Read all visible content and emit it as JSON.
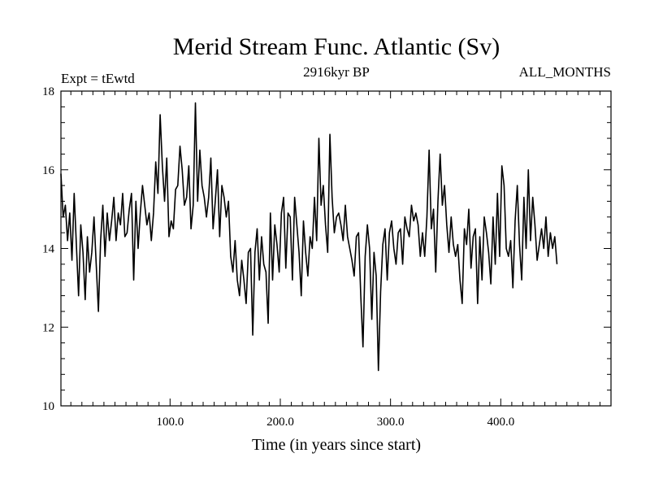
{
  "chart_data": {
    "type": "line",
    "title": "Merid Stream Func. Atlantic (Sv)",
    "subtitle_left": "Expt = tEwtd",
    "subtitle_center": "2916kyr BP",
    "subtitle_right": "ALL_MONTHS",
    "xlabel": "Time (in years since start)",
    "ylabel": "",
    "xlim": [
      1,
      500
    ],
    "ylim": [
      10,
      18
    ],
    "x_ticks_major": [
      100,
      200,
      300,
      400
    ],
    "x_tick_labels": [
      "100.0",
      "200.0",
      "300.0",
      "400.0"
    ],
    "y_ticks_major": [
      10,
      12,
      14,
      16,
      18
    ],
    "y_tick_labels": [
      "10",
      "12",
      "14",
      "16",
      "18"
    ],
    "grid": false,
    "series": [
      {
        "name": "Merid Stream Func. Atlantic",
        "x_start": 1,
        "x_step": 2,
        "values": [
          15.9,
          14.8,
          15.1,
          14.2,
          14.9,
          13.7,
          15.4,
          14.1,
          12.8,
          14.6,
          13.9,
          12.7,
          14.3,
          13.4,
          13.9,
          14.8,
          13.6,
          12.4,
          14.2,
          15.1,
          13.8,
          14.9,
          14.2,
          14.7,
          15.3,
          14.2,
          14.9,
          14.6,
          15.4,
          14.3,
          14.4,
          15.0,
          15.4,
          13.2,
          15.2,
          14.0,
          14.9,
          15.6,
          15.1,
          14.6,
          14.9,
          14.2,
          14.9,
          16.2,
          15.4,
          17.4,
          16.1,
          15.2,
          16.3,
          14.3,
          14.7,
          14.5,
          15.5,
          15.6,
          16.6,
          16.0,
          15.1,
          15.3,
          16.1,
          14.5,
          15.1,
          17.7,
          15.2,
          16.5,
          15.6,
          15.3,
          14.8,
          15.3,
          16.3,
          14.5,
          15.2,
          16.0,
          14.3,
          15.6,
          15.3,
          14.8,
          15.2,
          13.8,
          13.4,
          14.2,
          13.2,
          12.8,
          13.7,
          13.2,
          12.6,
          13.9,
          14.0,
          11.8,
          13.9,
          14.5,
          13.2,
          14.3,
          13.6,
          13.4,
          12.1,
          14.9,
          13.2,
          14.6,
          14.1,
          13.4,
          14.9,
          15.3,
          13.5,
          14.9,
          14.8,
          13.2,
          15.3,
          14.6,
          13.9,
          12.8,
          14.7,
          13.9,
          13.3,
          14.3,
          14.0,
          15.3,
          14.2,
          16.8,
          15.1,
          15.6,
          14.6,
          13.9,
          16.9,
          15.3,
          14.4,
          14.8,
          14.9,
          14.6,
          14.2,
          15.1,
          14.3,
          14.0,
          13.7,
          13.3,
          14.3,
          14.4,
          12.8,
          11.5,
          13.8,
          14.6,
          14.0,
          12.2,
          13.9,
          13.3,
          10.9,
          12.9,
          14.1,
          14.5,
          13.2,
          14.4,
          14.7,
          14.0,
          13.6,
          14.4,
          14.5,
          13.6,
          14.8,
          14.5,
          14.3,
          15.1,
          14.7,
          14.9,
          14.6,
          13.8,
          14.4,
          13.8,
          14.8,
          16.5,
          14.5,
          15.0,
          13.4,
          15.2,
          16.4,
          15.1,
          15.6,
          14.6,
          13.9,
          14.8,
          14.1,
          13.8,
          14.1,
          13.2,
          12.6,
          14.5,
          14.1,
          15.0,
          13.5,
          14.3,
          14.5,
          12.6,
          14.3,
          13.2,
          14.8,
          14.4,
          13.9,
          13.1,
          14.8,
          13.6,
          15.4,
          13.8,
          16.1,
          15.6,
          14.0,
          13.8,
          14.2,
          13.0,
          14.7,
          15.6,
          14.1,
          13.2,
          15.3,
          14.0,
          16.0,
          14.2,
          15.3,
          14.6,
          13.7,
          14.1,
          14.5,
          14.0,
          14.8,
          13.8,
          14.4,
          14.0,
          14.3,
          13.6
        ]
      }
    ]
  }
}
